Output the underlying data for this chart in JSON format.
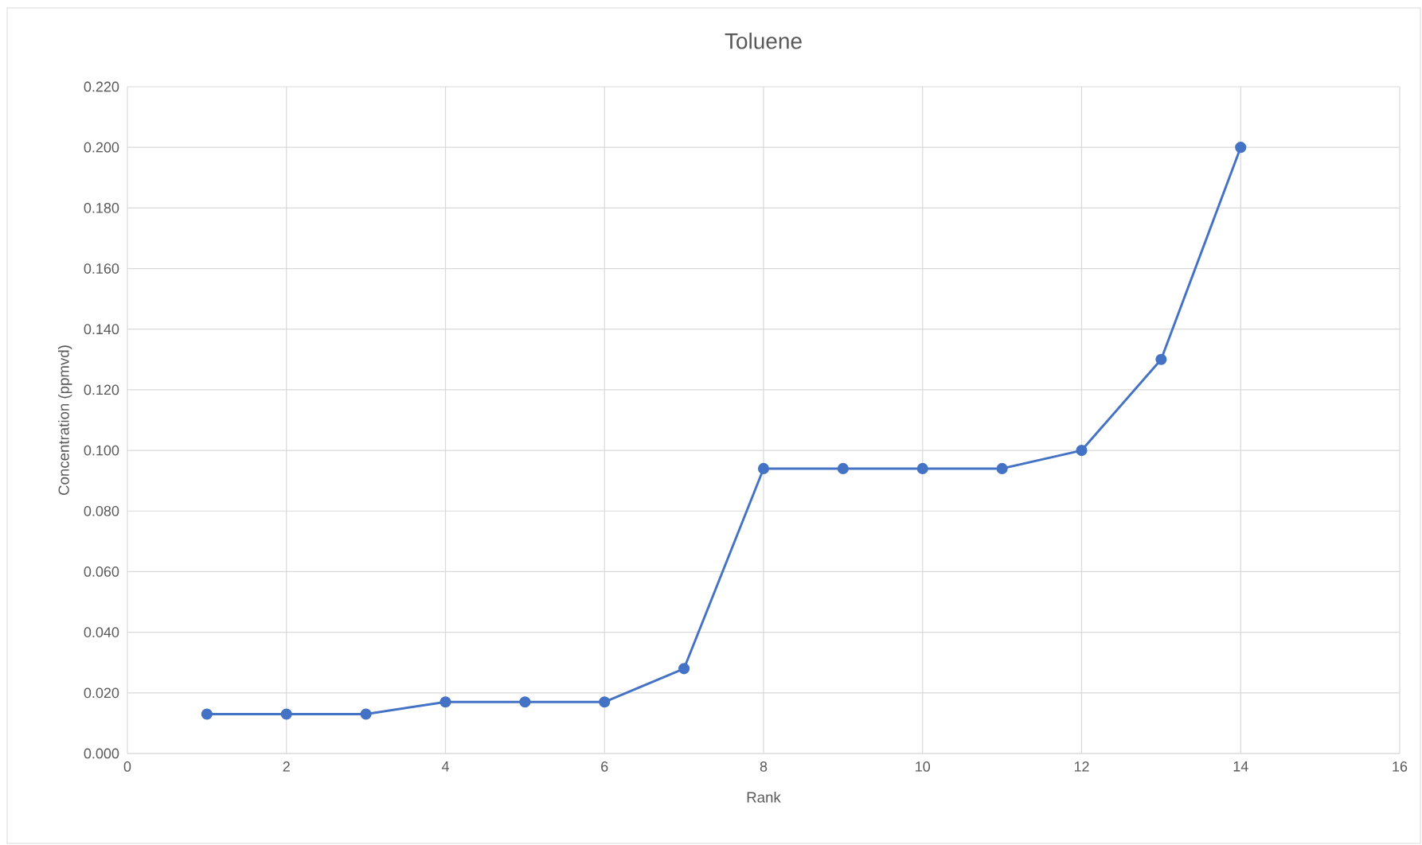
{
  "chart_data": {
    "type": "line",
    "title": "Toluene",
    "xlabel": "Rank",
    "ylabel": "Concentration (ppmvd)",
    "x": [
      1,
      2,
      3,
      4,
      5,
      6,
      7,
      8,
      9,
      10,
      11,
      12,
      13,
      14
    ],
    "values": [
      0.013,
      0.013,
      0.013,
      0.017,
      0.017,
      0.017,
      0.028,
      0.094,
      0.094,
      0.094,
      0.094,
      0.1,
      0.13,
      0.2
    ],
    "color": "#4472c4",
    "marker": "circle",
    "grid": true,
    "xlim": [
      0,
      16
    ],
    "xticks": [
      0,
      2,
      4,
      6,
      8,
      10,
      12,
      14,
      16
    ],
    "ylim": [
      0,
      0.22
    ],
    "yticks": [
      {
        "value": 0,
        "label": "0.000"
      },
      {
        "value": 0.02,
        "label": "0.020"
      },
      {
        "value": 0.04,
        "label": "0.040"
      },
      {
        "value": 0.06,
        "label": "0.060"
      },
      {
        "value": 0.08,
        "label": "0.080"
      },
      {
        "value": 0.1,
        "label": "0.100"
      },
      {
        "value": 0.12,
        "label": "0.120"
      },
      {
        "value": 0.14,
        "label": "0.140"
      },
      {
        "value": 0.16,
        "label": "0.160"
      },
      {
        "value": 0.18,
        "label": "0.180"
      },
      {
        "value": 0.2,
        "label": "0.200"
      },
      {
        "value": 0.22,
        "label": "0.220"
      }
    ]
  }
}
